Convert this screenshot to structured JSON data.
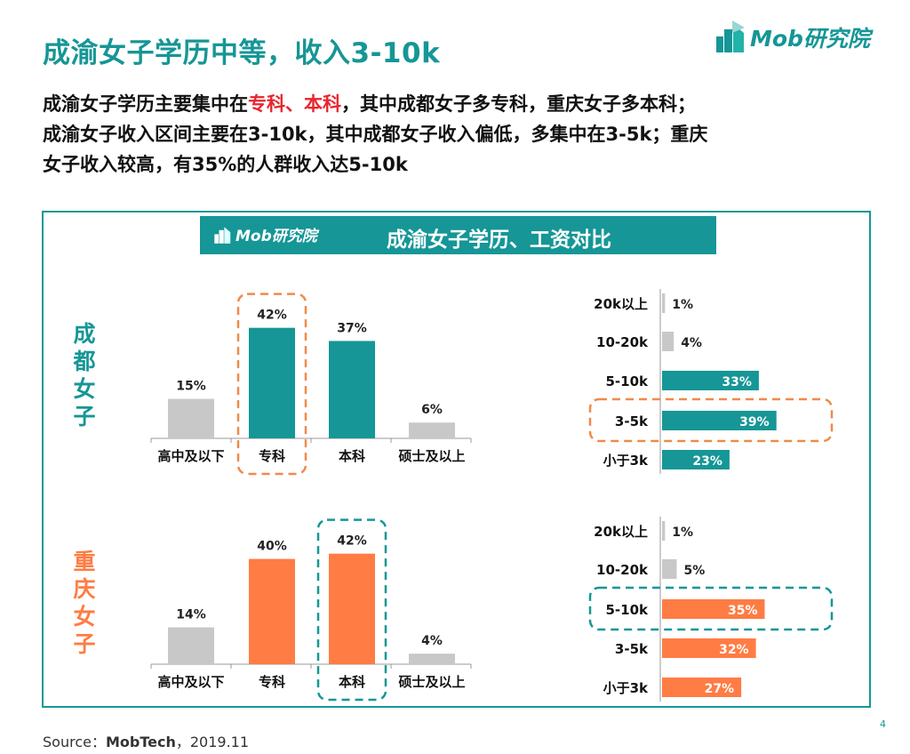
{
  "header": {
    "title": "成渝女子学历中等，收入3-10k",
    "logo_text": "Mob研究院"
  },
  "summary": {
    "line1_a": "成渝女子学历主要集中在",
    "line1_hl1": "专科",
    "line1_sep": "、",
    "line1_hl2": "本科",
    "line1_b": "，其中成都女子多专科，重庆女子多本科；",
    "line2": "成渝女子收入区间主要在3-10k，其中成都女子收入偏低，多集中在3-5k；重庆",
    "line3": "女子收入较高，有35%的人群收入达5-10k"
  },
  "banner": {
    "logo_text": "Mob研究院",
    "title": "成渝女子学历、工资对比"
  },
  "colors": {
    "teal": "#169696",
    "orange": "#ff7c44",
    "gray": "#c8c8c8",
    "dash_orange": "#f08a4b",
    "highlight_red": "#e8262e"
  },
  "chart_data": [
    {
      "type": "bar",
      "group": "成都女子",
      "title": "学历",
      "categories": [
        "高中及以下",
        "专科",
        "本科",
        "硕士及以上"
      ],
      "values": [
        15,
        42,
        37,
        6
      ],
      "labels": [
        "15%",
        "42%",
        "37%",
        "6%"
      ],
      "highlight": "专科"
    },
    {
      "type": "bar",
      "group": "成都女子",
      "title": "工资",
      "orientation": "horizontal",
      "categories": [
        "20k以上",
        "10-20k",
        "5-10k",
        "3-5k",
        "小于3k"
      ],
      "values": [
        1,
        4,
        33,
        39,
        23
      ],
      "labels": [
        "1%",
        "4%",
        "33%",
        "39%",
        "23%"
      ],
      "highlight": "3-5k"
    },
    {
      "type": "bar",
      "group": "重庆女子",
      "title": "学历",
      "categories": [
        "高中及以下",
        "专科",
        "本科",
        "硕士及以上"
      ],
      "values": [
        14,
        40,
        42,
        4
      ],
      "labels": [
        "14%",
        "40%",
        "42%",
        "4%"
      ],
      "highlight": "本科"
    },
    {
      "type": "bar",
      "group": "重庆女子",
      "title": "工资",
      "orientation": "horizontal",
      "categories": [
        "20k以上",
        "10-20k",
        "5-10k",
        "3-5k",
        "小于3k"
      ],
      "values": [
        1,
        5,
        35,
        32,
        27
      ],
      "labels": [
        "1%",
        "5%",
        "35%",
        "32%",
        "27%"
      ],
      "highlight": "5-10k"
    }
  ],
  "groups": [
    {
      "label_chars": [
        "成",
        "都",
        "女",
        "子"
      ]
    },
    {
      "label_chars": [
        "重",
        "庆",
        "女",
        "子"
      ]
    }
  ],
  "footer": {
    "source_prefix": "Source：",
    "source_bold": "MobTech",
    "source_suffix": "，2019.11",
    "page": "4"
  }
}
